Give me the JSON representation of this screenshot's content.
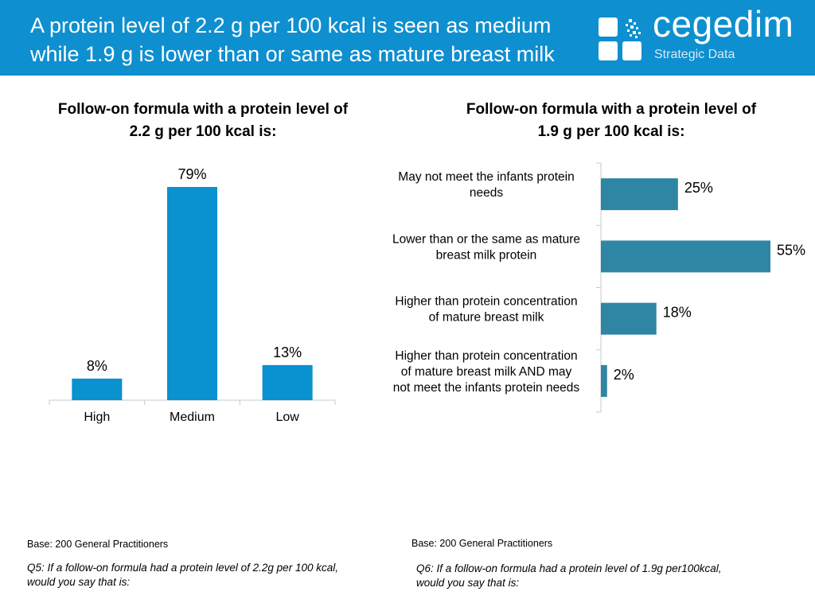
{
  "header": {
    "title": "A protein level of 2.2 g per 100 kcal is seen as medium\nwhile 1.9 g is lower than or same as mature breast milk",
    "logo_name": "cegedim",
    "logo_subtitle": "Strategic Data"
  },
  "colors": {
    "header_bg": "#0e8fcf",
    "bar_left": "#0a91cf",
    "bar_right": "#2e86a4"
  },
  "left_panel": {
    "title": "Follow-on formula with a protein level of\n2.2 g per 100 kcal is:",
    "base": "Base: 200 General Practitioners",
    "question": "Q5: If a follow-on formula had a protein level of 2.2g per 100 kcal,\nwould you say that is:"
  },
  "right_panel": {
    "title": "Follow-on formula with a protein level of\n1.9 g per 100 kcal is:",
    "base": "Base: 200 General Practitioners",
    "question": "Q6: If a follow-on formula had a protein level of 1.9g per100kcal,\nwould you say that is:"
  },
  "chart_data": [
    {
      "type": "bar",
      "orientation": "vertical",
      "categories": [
        "High",
        "Medium",
        "Low"
      ],
      "values": [
        8,
        79,
        13
      ],
      "value_labels": [
        "8%",
        "79%",
        "13%"
      ],
      "unit": "%",
      "ylim": [
        0,
        79
      ],
      "grid": false
    },
    {
      "type": "bar",
      "orientation": "horizontal",
      "categories": [
        "May not meet the infants protein\nneeds",
        "Lower than or the same as mature\nbreast milk protein",
        "Higher than protein concentration\nof mature breast milk",
        "Higher than protein concentration\nof mature breast milk AND may\nnot meet the infants protein needs"
      ],
      "values": [
        25,
        55,
        18,
        2
      ],
      "value_labels": [
        "25%",
        "55%",
        "18%",
        "2%"
      ],
      "unit": "%",
      "xlim": [
        0,
        55
      ],
      "grid": false
    }
  ]
}
